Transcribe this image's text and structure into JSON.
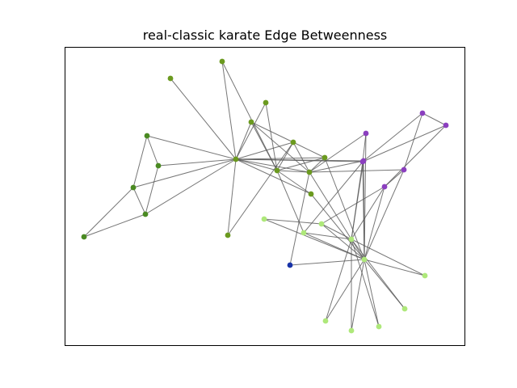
{
  "title": "real-classic karate Edge Betweenness",
  "colors": {
    "edge": "#555555",
    "community_olive": "#6b9a1f",
    "community_green": "#4a8a22",
    "community_purple": "#8b3fbf",
    "community_lightgreen": "#aee87a",
    "community_blue": "#1833a8"
  },
  "chart_data": {
    "type": "network",
    "title": "real-classic karate Edge Betweenness",
    "nodes": [
      {
        "id": 0,
        "group": "olive"
      },
      {
        "id": 1,
        "group": "olive"
      },
      {
        "id": 2,
        "group": "olive"
      },
      {
        "id": 3,
        "group": "olive"
      },
      {
        "id": 4,
        "group": "green"
      },
      {
        "id": 5,
        "group": "green"
      },
      {
        "id": 6,
        "group": "green"
      },
      {
        "id": 7,
        "group": "olive"
      },
      {
        "id": 8,
        "group": "purple"
      },
      {
        "id": 9,
        "group": "blue"
      },
      {
        "id": 10,
        "group": "green"
      },
      {
        "id": 11,
        "group": "olive"
      },
      {
        "id": 12,
        "group": "olive"
      },
      {
        "id": 13,
        "group": "olive"
      },
      {
        "id": 14,
        "group": "lightgreen"
      },
      {
        "id": 15,
        "group": "lightgreen"
      },
      {
        "id": 16,
        "group": "green"
      },
      {
        "id": 17,
        "group": "olive"
      },
      {
        "id": 18,
        "group": "lightgreen"
      },
      {
        "id": 19,
        "group": "olive"
      },
      {
        "id": 20,
        "group": "lightgreen"
      },
      {
        "id": 21,
        "group": "olive"
      },
      {
        "id": 22,
        "group": "lightgreen"
      },
      {
        "id": 23,
        "group": "purple"
      },
      {
        "id": 24,
        "group": "purple"
      },
      {
        "id": 25,
        "group": "purple"
      },
      {
        "id": 26,
        "group": "lightgreen"
      },
      {
        "id": 27,
        "group": "purple"
      },
      {
        "id": 28,
        "group": "purple"
      },
      {
        "id": 29,
        "group": "lightgreen"
      },
      {
        "id": 30,
        "group": "lightgreen"
      },
      {
        "id": 31,
        "group": "purple"
      },
      {
        "id": 32,
        "group": "lightgreen"
      },
      {
        "id": 33,
        "group": "lightgreen"
      }
    ],
    "edges": [
      [
        0,
        1
      ],
      [
        0,
        2
      ],
      [
        0,
        3
      ],
      [
        0,
        4
      ],
      [
        0,
        5
      ],
      [
        0,
        6
      ],
      [
        0,
        7
      ],
      [
        0,
        8
      ],
      [
        0,
        10
      ],
      [
        0,
        11
      ],
      [
        0,
        12
      ],
      [
        0,
        13
      ],
      [
        0,
        17
      ],
      [
        0,
        19
      ],
      [
        0,
        21
      ],
      [
        0,
        31
      ],
      [
        1,
        2
      ],
      [
        1,
        3
      ],
      [
        1,
        7
      ],
      [
        1,
        13
      ],
      [
        1,
        17
      ],
      [
        1,
        19
      ],
      [
        1,
        21
      ],
      [
        1,
        30
      ],
      [
        2,
        3
      ],
      [
        2,
        7
      ],
      [
        2,
        8
      ],
      [
        2,
        9
      ],
      [
        2,
        13
      ],
      [
        2,
        27
      ],
      [
        2,
        28
      ],
      [
        2,
        32
      ],
      [
        3,
        7
      ],
      [
        3,
        12
      ],
      [
        3,
        13
      ],
      [
        4,
        6
      ],
      [
        4,
        10
      ],
      [
        5,
        6
      ],
      [
        5,
        10
      ],
      [
        5,
        16
      ],
      [
        6,
        16
      ],
      [
        8,
        30
      ],
      [
        8,
        32
      ],
      [
        8,
        33
      ],
      [
        9,
        33
      ],
      [
        13,
        33
      ],
      [
        14,
        32
      ],
      [
        14,
        33
      ],
      [
        15,
        32
      ],
      [
        15,
        33
      ],
      [
        18,
        32
      ],
      [
        18,
        33
      ],
      [
        19,
        33
      ],
      [
        20,
        32
      ],
      [
        20,
        33
      ],
      [
        22,
        32
      ],
      [
        22,
        33
      ],
      [
        23,
        25
      ],
      [
        23,
        27
      ],
      [
        23,
        29
      ],
      [
        23,
        32
      ],
      [
        23,
        33
      ],
      [
        24,
        25
      ],
      [
        24,
        27
      ],
      [
        24,
        31
      ],
      [
        25,
        31
      ],
      [
        26,
        29
      ],
      [
        26,
        33
      ],
      [
        27,
        33
      ],
      [
        28,
        31
      ],
      [
        28,
        33
      ],
      [
        29,
        32
      ],
      [
        29,
        33
      ],
      [
        30,
        32
      ],
      [
        30,
        33
      ],
      [
        31,
        32
      ],
      [
        31,
        33
      ],
      [
        32,
        33
      ]
    ]
  }
}
